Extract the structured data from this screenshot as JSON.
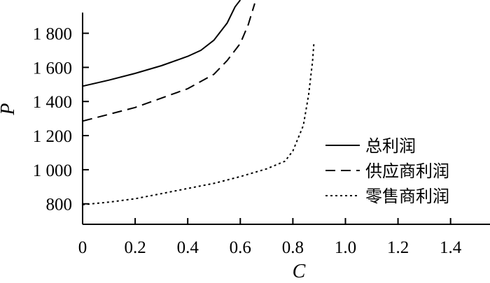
{
  "chart_data": {
    "type": "line",
    "title": "",
    "xlabel": "C",
    "ylabel": "P",
    "xlim": [
      0,
      1.55
    ],
    "ylim": [
      680,
      1995
    ],
    "grid": false,
    "legend_position": "right",
    "x_ticks": [
      0,
      0.2,
      0.4,
      0.6,
      0.8,
      1.0,
      1.2,
      1.4
    ],
    "x_tick_labels": [
      "0",
      "0.2",
      "0.4",
      "0.6",
      "0.8",
      "1.0",
      "1.2",
      "1.4"
    ],
    "y_ticks": [
      800,
      1000,
      1200,
      1400,
      1600,
      1800
    ],
    "y_tick_labels": [
      "800",
      "1 000",
      "1 200",
      "1 400",
      "1 600",
      "1 800"
    ],
    "series": [
      {
        "name": "总利润",
        "style": "solid",
        "color": "#000000",
        "points": [
          [
            0,
            1490
          ],
          [
            0.1,
            1525
          ],
          [
            0.2,
            1565
          ],
          [
            0.3,
            1610
          ],
          [
            0.4,
            1665
          ],
          [
            0.45,
            1700
          ],
          [
            0.5,
            1760
          ],
          [
            0.55,
            1860
          ],
          [
            0.58,
            1955
          ],
          [
            0.6,
            1995
          ]
        ]
      },
      {
        "name": "供应商利润",
        "style": "dashed",
        "color": "#000000",
        "points": [
          [
            0,
            1285
          ],
          [
            0.1,
            1325
          ],
          [
            0.2,
            1365
          ],
          [
            0.3,
            1420
          ],
          [
            0.4,
            1475
          ],
          [
            0.5,
            1560
          ],
          [
            0.55,
            1640
          ],
          [
            0.6,
            1740
          ],
          [
            0.63,
            1850
          ],
          [
            0.655,
            1975
          ]
        ]
      },
      {
        "name": "零售商利润",
        "style": "dotted",
        "color": "#000000",
        "points": [
          [
            0,
            795
          ],
          [
            0.1,
            810
          ],
          [
            0.2,
            830
          ],
          [
            0.3,
            860
          ],
          [
            0.4,
            890
          ],
          [
            0.5,
            920
          ],
          [
            0.6,
            960
          ],
          [
            0.7,
            1005
          ],
          [
            0.77,
            1050
          ],
          [
            0.8,
            1110
          ],
          [
            0.84,
            1260
          ],
          [
            0.86,
            1440
          ],
          [
            0.875,
            1635
          ],
          [
            0.88,
            1740
          ]
        ]
      }
    ]
  }
}
